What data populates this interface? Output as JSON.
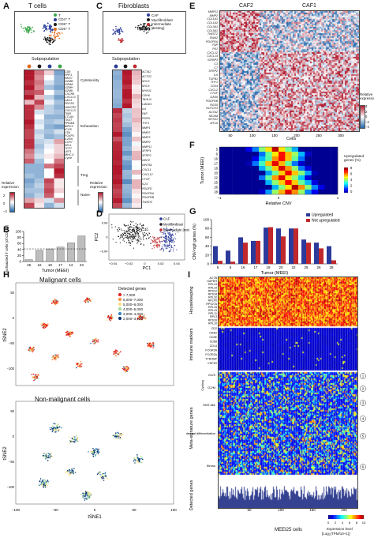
{
  "panels": {
    "A": {
      "label": "A",
      "title": "T cells",
      "legend": [
        "T",
        "CD4⁺ T",
        "CD8⁺ T",
        "CD8⁺ T"
      ],
      "legend_sub": [
        "reg",
        "conv",
        "conv",
        "exhausted"
      ],
      "legend_colors": [
        "#3aa54a",
        "#2a3e9a",
        "#1c1c1c",
        "#e06a1a"
      ],
      "subpop_title": "Subpopulation",
      "genes": [
        "CD8",
        "PRF1",
        "NKG7",
        "GZMB",
        "GZMA",
        "GZMH",
        "GZMK",
        "CXCR6",
        "CXCL13",
        "LAG3",
        "PDCD1",
        "HAVCR2",
        "CXCL13",
        "TIM3",
        "CTLA4",
        "TIGIT",
        "PRDM1",
        "BIRC3",
        "ICOS",
        "CD4",
        "FOXP3",
        "IL2RA",
        "CCR7",
        "SELL",
        "TCF7",
        "LEF1",
        "MHC-II",
        "Cycle"
      ],
      "groups": [
        "Cytotoxicity",
        "Exhaustion",
        "Treg",
        "Naive"
      ],
      "relexp_label": "Relative\nexpression",
      "scale_ticks": [
        "2",
        "0",
        "−2"
      ]
    },
    "B": {
      "label": "B",
      "chart_data": {
        "type": "bar",
        "categories": [
          "25",
          "16",
          "18",
          "17",
          "12",
          "23"
        ],
        "values": [
          6,
          37,
          42,
          48,
          62,
          85
        ],
        "xlabel": "Tumor (MEEI)",
        "ylabel": "Exhausted T cells (of CD8⁺) (%)",
        "ylim": [
          0,
          100
        ],
        "yticks": [
          "0",
          "20",
          "40",
          "60",
          "80",
          "100"
        ],
        "dashed_line": 42
      }
    },
    "C": {
      "label": "C",
      "title": "Fibroblasts",
      "legend": [
        "CAF",
        "Myofibroblast",
        "Intermediate (resting)"
      ],
      "legend_colors": [
        "#2b3a9b",
        "#1c1c1c",
        "#c0282c"
      ],
      "subpop_title": "Subpopulation",
      "genes": [
        "ACTA2",
        "ACTG2",
        "MYLK",
        "MYL9",
        "MYH11",
        "CDH6",
        "TAGLN",
        "LMOD1",
        "IL6",
        "FAP",
        "PDPN",
        "THY1",
        "MMP1",
        "MMP2",
        "MMP3",
        "MMP9",
        "MMP11",
        "SFRP1",
        "SFRP2",
        "WNT2",
        "WNT5A",
        "CXCL1",
        "CXCL12",
        "CTGF",
        "IL24",
        "PDGFD",
        "PDGFRA",
        "PDGFRB",
        "TWIST2"
      ],
      "relexp_label": "Relative\nexpression",
      "scale_ticks": [
        "2",
        "0",
        "−2"
      ]
    },
    "D": {
      "label": "D",
      "chart_data": {
        "type": "scatter",
        "xlabel": "PC1",
        "ylabel": "PC2",
        "xlim": [
          -0.045,
          0.05
        ],
        "ylim": [
          -0.065,
          0.065
        ],
        "xticks": [
          "−0.04",
          "−0.02",
          "0",
          "0.02",
          "0.04"
        ],
        "yticks": [
          "−0.04",
          "0",
          "0.04"
        ],
        "series": [
          {
            "name": "CAF",
            "color": "#2b3a9b",
            "center": [
              0.03,
              -0.01
            ]
          },
          {
            "name": "Myofibroblast",
            "color": "#1c1c1c",
            "center": [
              -0.015,
              0.01
            ]
          },
          {
            "name": "Intermediate (resting)",
            "color": "#c0282c",
            "center": [
              0.018,
              -0.005
            ]
          }
        ]
      }
    },
    "E": {
      "label": "E",
      "col_labels": [
        "CAF2",
        "CAF1"
      ],
      "genes": [
        "MMP11",
        "MMP2",
        "COL1A1",
        "COL1A2",
        "COL3A1",
        "COL5A1",
        "TWIST2",
        "SNAI2",
        "PDGFRA",
        "FAP",
        "FN1",
        "CXCL12",
        "CXCL14",
        "IGFBP3",
        "C3",
        "C7",
        "SFRP2",
        "IL6",
        "TGFB1",
        "THY1",
        "CD34",
        "CXCL2",
        "CTGF",
        "GAS6",
        "PDGFRB",
        "RGS5",
        "NOTCH3",
        "ACTA2",
        "MCAM",
        "MYH11",
        "MT1A"
      ],
      "xticks": [
        "50",
        "100",
        "150",
        "200",
        "250",
        "300"
      ],
      "xlabel": "Cells",
      "relexp_label": "Relative\nexpression",
      "scale_ticks": [
        "4",
        "2",
        "0",
        "−2",
        "−4"
      ]
    },
    "F": {
      "label": "F",
      "ylabel": "Tumor (MEEI)",
      "xlabel": "Relative CNV",
      "rows": [
        "5",
        "6",
        "16",
        "17",
        "18",
        "20",
        "22",
        "25",
        "26",
        "28"
      ],
      "xticks": [
        "−1",
        "0",
        "1"
      ],
      "legend_label": "Upregulated\ngenes (%)",
      "scale_ticks": [
        "8",
        "6",
        "4",
        "2",
        "0"
      ]
    },
    "G": {
      "label": "G",
      "chart_data": {
        "type": "bar",
        "categories": [
          "5",
          "6",
          "16",
          "17",
          "18",
          "20",
          "22",
          "25",
          "26",
          "28"
        ],
        "series": [
          {
            "name": "Upregulated",
            "color": "#2b3a9b",
            "values": [
              40,
              30,
              60,
              52,
              82,
              80,
              80,
              55,
              48,
              40
            ]
          },
          {
            "name": "Not upregulated",
            "color": "#c0282c",
            "values": [
              7,
              5,
              48,
              52,
              83,
              62,
              80,
              48,
              35,
              8
            ]
          }
        ],
        "ylabel": "CNV-high genes (%)",
        "xlabel": "Tumor (MEEI)",
        "ylim": [
          0,
          100
        ],
        "yticks": [
          "0",
          "20",
          "40",
          "60",
          "80",
          "100"
        ]
      }
    },
    "H": {
      "label": "H",
      "top_title": "Malignant cells",
      "bottom_title": "Non-malignant cells",
      "legend_title": "Detected genes",
      "legend_items": [
        "> 7,000",
        "6,000–7,000",
        "5,000–6,000",
        "4,000–5,000",
        "3,000–4,000",
        "2,000–3,000"
      ],
      "legend_colors": [
        "#e31a1c",
        "#fd8d3c",
        "#fed976",
        "#a1d99b",
        "#3182bd",
        "#08306b"
      ],
      "xlabel": "tSNE1",
      "ylabel": "tSNE2",
      "xticks": [
        "−100",
        "−50",
        "0",
        "50",
        "100"
      ],
      "yticks": [
        "50",
        "0",
        "−50",
        "−100"
      ]
    },
    "I": {
      "label": "I",
      "genes_housekeeping": [
        "ACTB",
        "GAPDH",
        "RPL13",
        "RPL19",
        "RPS12",
        "RPS18",
        "RPL32",
        "RPLP0",
        "RPS27A",
        "RPL15",
        "RPL19",
        "RPL11",
        "RPL3",
        "RPS16",
        "RPL10"
      ],
      "genes_immune": [
        "CD2",
        "CD3D",
        "CD3E",
        "CD68",
        "CD14",
        "FCGR3A",
        "FCGR2A",
        "TYROBP",
        "CSF1R"
      ],
      "groups": [
        "Housekeeping",
        "Immune markers",
        "Meta-signature genes",
        "Detected genes"
      ],
      "meta_labels": [
        "G1/S",
        "G2/M",
        "Cycling",
        "EMT-like",
        "Epidermal differentiation",
        "Stress"
      ],
      "circle_numbers": [
        "1",
        "2",
        "3",
        "4",
        "5",
        "6"
      ],
      "xlabel": "MEEI25 cells",
      "xticks": [
        "50",
        "100",
        "150",
        "200"
      ],
      "legend_title": "Expression level",
      "legend_unit": "[Log₂(TPM/10+1)]",
      "scale_ticks": [
        "0",
        "2",
        "4",
        "6",
        "8",
        "10"
      ]
    }
  }
}
